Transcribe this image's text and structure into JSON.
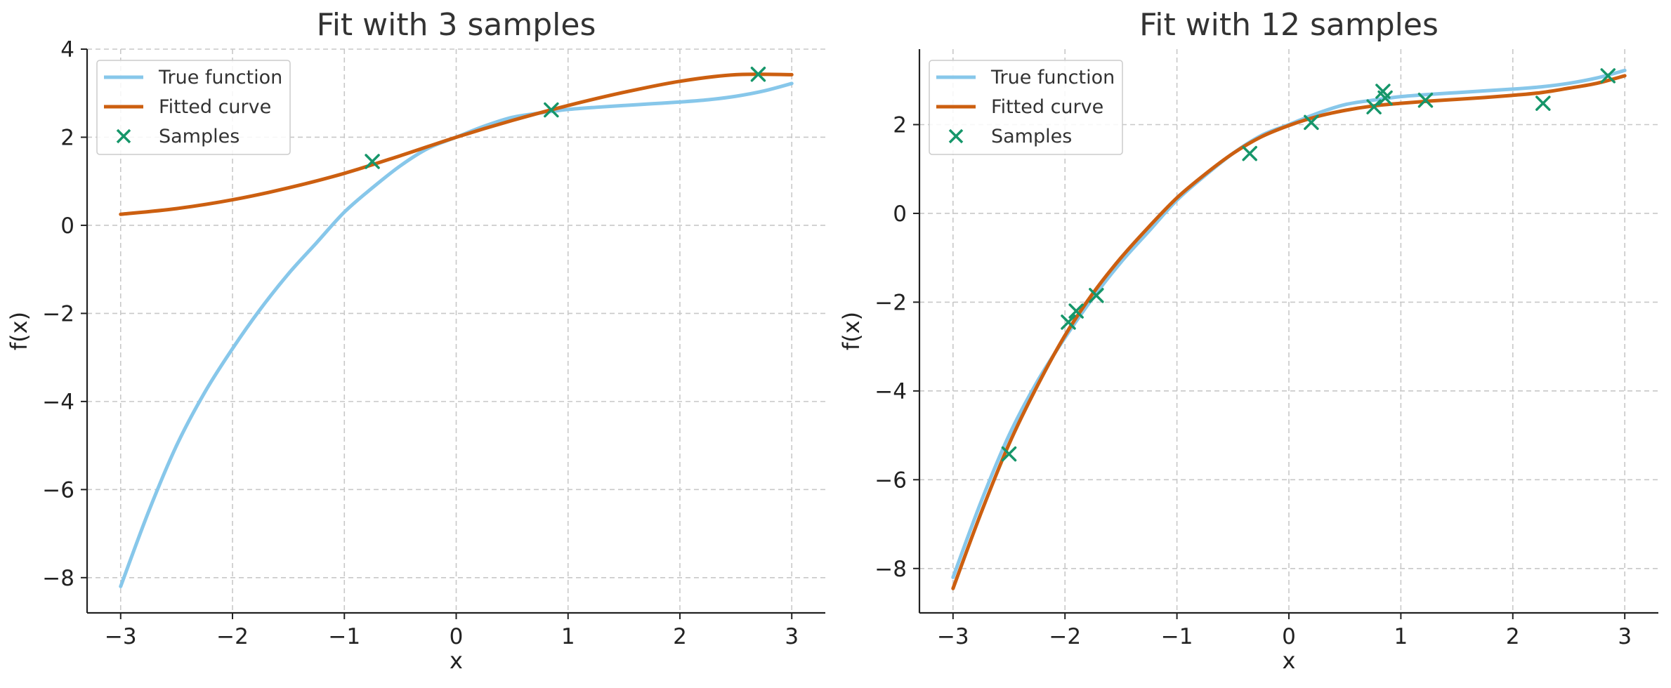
{
  "chart_data": [
    {
      "type": "line",
      "title": "Fit with 3 samples",
      "xlabel": "x",
      "ylabel": "f(x)",
      "xlim": [
        -3.3,
        3.3
      ],
      "ylim": [
        -8.8,
        4.0
      ],
      "xticks": [
        -3,
        -2,
        -1,
        0,
        1,
        2,
        3
      ],
      "xtick_labels": [
        "−3",
        "−2",
        "−1",
        "0",
        "1",
        "2",
        "3"
      ],
      "yticks": [
        -8,
        -6,
        -4,
        -2,
        0,
        2,
        4
      ],
      "ytick_labels": [
        "−8",
        "−6",
        "−4",
        "−2",
        "0",
        "2",
        "4"
      ],
      "grid": true,
      "legend_position": "top-left",
      "series": [
        {
          "name": "True function",
          "kind": "line",
          "color": "#87c7ea",
          "x": [
            -3.0,
            -2.75,
            -2.5,
            -2.25,
            -2.0,
            -1.75,
            -1.5,
            -1.25,
            -1.0,
            -0.75,
            -0.5,
            -0.25,
            0.0,
            0.25,
            0.5,
            0.75,
            1.0,
            1.25,
            1.5,
            1.75,
            2.0,
            2.25,
            2.5,
            2.75,
            3.0
          ],
          "y": [
            -8.2,
            -6.5,
            -5.0,
            -3.8,
            -2.8,
            -1.9,
            -1.1,
            -0.4,
            0.3,
            0.85,
            1.35,
            1.75,
            2.0,
            2.25,
            2.45,
            2.55,
            2.63,
            2.68,
            2.72,
            2.76,
            2.8,
            2.85,
            2.93,
            3.05,
            3.22
          ]
        },
        {
          "name": "Fitted curve",
          "kind": "line",
          "color": "#cc5f10",
          "x": [
            -3.0,
            -2.5,
            -2.0,
            -1.5,
            -1.0,
            -0.5,
            0.0,
            0.5,
            1.0,
            1.5,
            2.0,
            2.5,
            3.0
          ],
          "y": [
            0.25,
            0.38,
            0.58,
            0.85,
            1.18,
            1.58,
            2.0,
            2.38,
            2.72,
            3.02,
            3.27,
            3.42,
            3.42
          ]
        },
        {
          "name": "Samples",
          "kind": "scatter",
          "color": "#16966a",
          "x": [
            -0.75,
            0.85,
            2.7
          ],
          "y": [
            1.45,
            2.62,
            3.43
          ]
        }
      ]
    },
    {
      "type": "line",
      "title": "Fit with 12 samples",
      "xlabel": "x",
      "ylabel": "f(x)",
      "xlim": [
        -3.3,
        3.3
      ],
      "ylim": [
        -9.0,
        3.7
      ],
      "xticks": [
        -3,
        -2,
        -1,
        0,
        1,
        2,
        3
      ],
      "xtick_labels": [
        "−3",
        "−2",
        "−1",
        "0",
        "1",
        "2",
        "3"
      ],
      "yticks": [
        -8,
        -6,
        -4,
        -2,
        0,
        2
      ],
      "ytick_labels": [
        "−8",
        "−6",
        "−4",
        "−2",
        "0",
        "2"
      ],
      "grid": true,
      "legend_position": "top-left",
      "series": [
        {
          "name": "True function",
          "kind": "line",
          "color": "#87c7ea",
          "x": [
            -3.0,
            -2.75,
            -2.5,
            -2.25,
            -2.0,
            -1.75,
            -1.5,
            -1.25,
            -1.0,
            -0.75,
            -0.5,
            -0.25,
            0.0,
            0.25,
            0.5,
            0.75,
            1.0,
            1.25,
            1.5,
            1.75,
            2.0,
            2.25,
            2.5,
            2.75,
            3.0
          ],
          "y": [
            -8.2,
            -6.5,
            -5.0,
            -3.8,
            -2.8,
            -1.9,
            -1.1,
            -0.4,
            0.3,
            0.85,
            1.35,
            1.75,
            2.0,
            2.25,
            2.45,
            2.55,
            2.63,
            2.68,
            2.72,
            2.76,
            2.8,
            2.85,
            2.93,
            3.05,
            3.22
          ]
        },
        {
          "name": "Fitted curve",
          "kind": "line",
          "color": "#cc5f10",
          "x": [
            -3.0,
            -2.75,
            -2.5,
            -2.25,
            -2.0,
            -1.75,
            -1.5,
            -1.25,
            -1.0,
            -0.75,
            -0.5,
            -0.25,
            0.0,
            0.25,
            0.5,
            0.75,
            1.0,
            1.25,
            1.5,
            1.75,
            2.0,
            2.25,
            2.5,
            2.75,
            3.0
          ],
          "y": [
            -8.45,
            -6.75,
            -5.2,
            -3.9,
            -2.75,
            -1.8,
            -1.0,
            -0.3,
            0.35,
            0.88,
            1.35,
            1.72,
            1.98,
            2.18,
            2.32,
            2.42,
            2.48,
            2.53,
            2.57,
            2.61,
            2.66,
            2.72,
            2.82,
            2.93,
            3.1
          ]
        },
        {
          "name": "Samples",
          "kind": "scatter",
          "color": "#16966a",
          "x": [
            -2.5,
            -1.97,
            -1.9,
            -1.72,
            -0.35,
            0.2,
            0.76,
            0.84,
            0.86,
            1.22,
            2.27,
            2.85
          ],
          "y": [
            -5.42,
            -2.45,
            -2.2,
            -1.85,
            1.35,
            2.05,
            2.4,
            2.75,
            2.6,
            2.55,
            2.48,
            3.1
          ]
        }
      ]
    }
  ]
}
